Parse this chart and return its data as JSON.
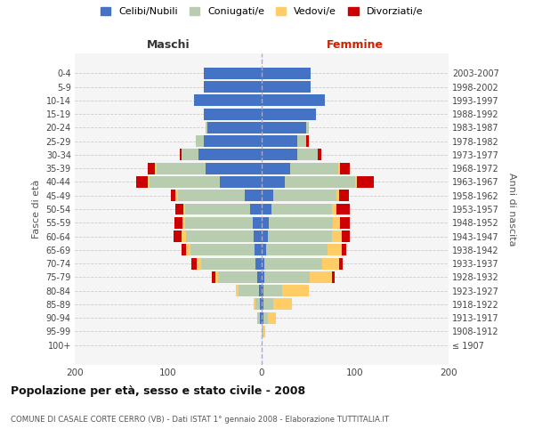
{
  "age_groups": [
    "100+",
    "95-99",
    "90-94",
    "85-89",
    "80-84",
    "75-79",
    "70-74",
    "65-69",
    "60-64",
    "55-59",
    "50-54",
    "45-49",
    "40-44",
    "35-39",
    "30-34",
    "25-29",
    "20-24",
    "15-19",
    "10-14",
    "5-9",
    "0-4"
  ],
  "birth_years": [
    "≤ 1907",
    "1908-1912",
    "1913-1917",
    "1918-1922",
    "1923-1927",
    "1928-1932",
    "1933-1937",
    "1938-1942",
    "1943-1947",
    "1948-1952",
    "1953-1957",
    "1958-1962",
    "1963-1967",
    "1968-1972",
    "1973-1977",
    "1978-1982",
    "1983-1987",
    "1988-1992",
    "1993-1997",
    "1998-2002",
    "2003-2007"
  ],
  "males": {
    "celibi": [
      0,
      0,
      2,
      2,
      3,
      5,
      7,
      8,
      9,
      10,
      12,
      18,
      45,
      60,
      68,
      62,
      58,
      62,
      72,
      62,
      62
    ],
    "coniugati": [
      0,
      0,
      3,
      5,
      22,
      42,
      58,
      68,
      72,
      72,
      70,
      72,
      75,
      52,
      18,
      8,
      2,
      0,
      0,
      0,
      0
    ],
    "vedovi": [
      0,
      0,
      0,
      2,
      3,
      3,
      5,
      5,
      5,
      3,
      2,
      2,
      2,
      2,
      0,
      0,
      0,
      0,
      0,
      0,
      0
    ],
    "divorziati": [
      0,
      0,
      0,
      0,
      0,
      3,
      5,
      5,
      8,
      8,
      8,
      5,
      12,
      8,
      2,
      0,
      0,
      0,
      0,
      0,
      0
    ]
  },
  "females": {
    "nubili": [
      0,
      0,
      2,
      2,
      2,
      3,
      3,
      5,
      7,
      8,
      10,
      12,
      25,
      30,
      38,
      38,
      48,
      58,
      68,
      52,
      52
    ],
    "coniugate": [
      0,
      2,
      5,
      10,
      20,
      48,
      62,
      65,
      68,
      68,
      65,
      68,
      75,
      52,
      22,
      10,
      2,
      0,
      0,
      0,
      0
    ],
    "vedove": [
      0,
      2,
      8,
      20,
      28,
      24,
      18,
      16,
      11,
      8,
      5,
      3,
      2,
      2,
      0,
      0,
      0,
      0,
      0,
      0,
      0
    ],
    "divorziate": [
      0,
      0,
      0,
      0,
      0,
      3,
      4,
      4,
      8,
      10,
      14,
      10,
      18,
      10,
      4,
      2,
      0,
      0,
      0,
      0,
      0
    ]
  },
  "colors": {
    "celibi": "#4472C4",
    "coniugati": "#B8CCB0",
    "vedovi": "#FFCC66",
    "divorziati": "#CC0000"
  },
  "legend_labels": [
    "Celibi/Nubili",
    "Coniugati/e",
    "Vedovi/e",
    "Divorziati/e"
  ],
  "title": "Popolazione per età, sesso e stato civile - 2008",
  "subtitle": "COMUNE DI CASALE CORTE CERRO (VB) - Dati ISTAT 1° gennaio 2008 - Elaborazione TUTTITALIA.IT",
  "xlabel_left": "Maschi",
  "xlabel_right": "Femmine",
  "ylabel_left": "Fasce di età",
  "ylabel_right": "Anni di nascita",
  "xlim": 200,
  "bg_color": "#FFFFFF",
  "plot_bg_color": "#F5F5F5"
}
